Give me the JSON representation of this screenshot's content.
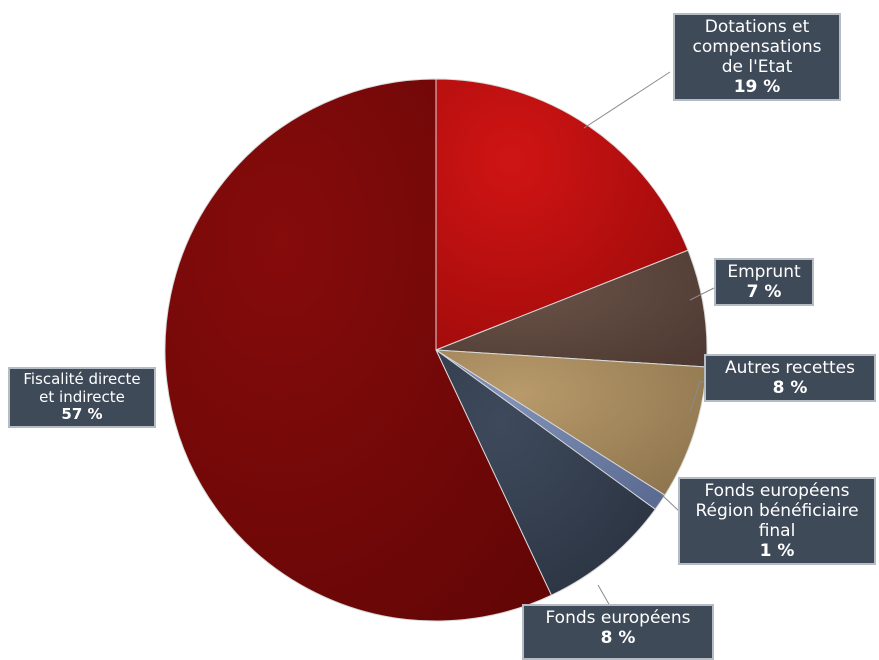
{
  "chart_data": {
    "type": "pie",
    "slices": [
      {
        "label": "Dotations et compensations de l'Etat",
        "pct_text": "19 %",
        "value": 19,
        "color": "#b10d0d"
      },
      {
        "label": "Emprunt",
        "pct_text": "7 %",
        "value": 7,
        "color": "#5e473d"
      },
      {
        "label": "Autres recettes",
        "pct_text": "8 %",
        "value": 8,
        "color": "#a3875c"
      },
      {
        "label": "Fonds européens Région bénéficiaire final",
        "pct_text": "1 %",
        "value": 1,
        "color": "#6e7fa8"
      },
      {
        "label": "Fonds européens",
        "pct_text": "8  %",
        "value": 8,
        "color": "#343e4e"
      },
      {
        "label": "Fiscalité directe et indirecte",
        "pct_text": "57 %",
        "value": 57,
        "color": "#7a0909"
      }
    ]
  }
}
